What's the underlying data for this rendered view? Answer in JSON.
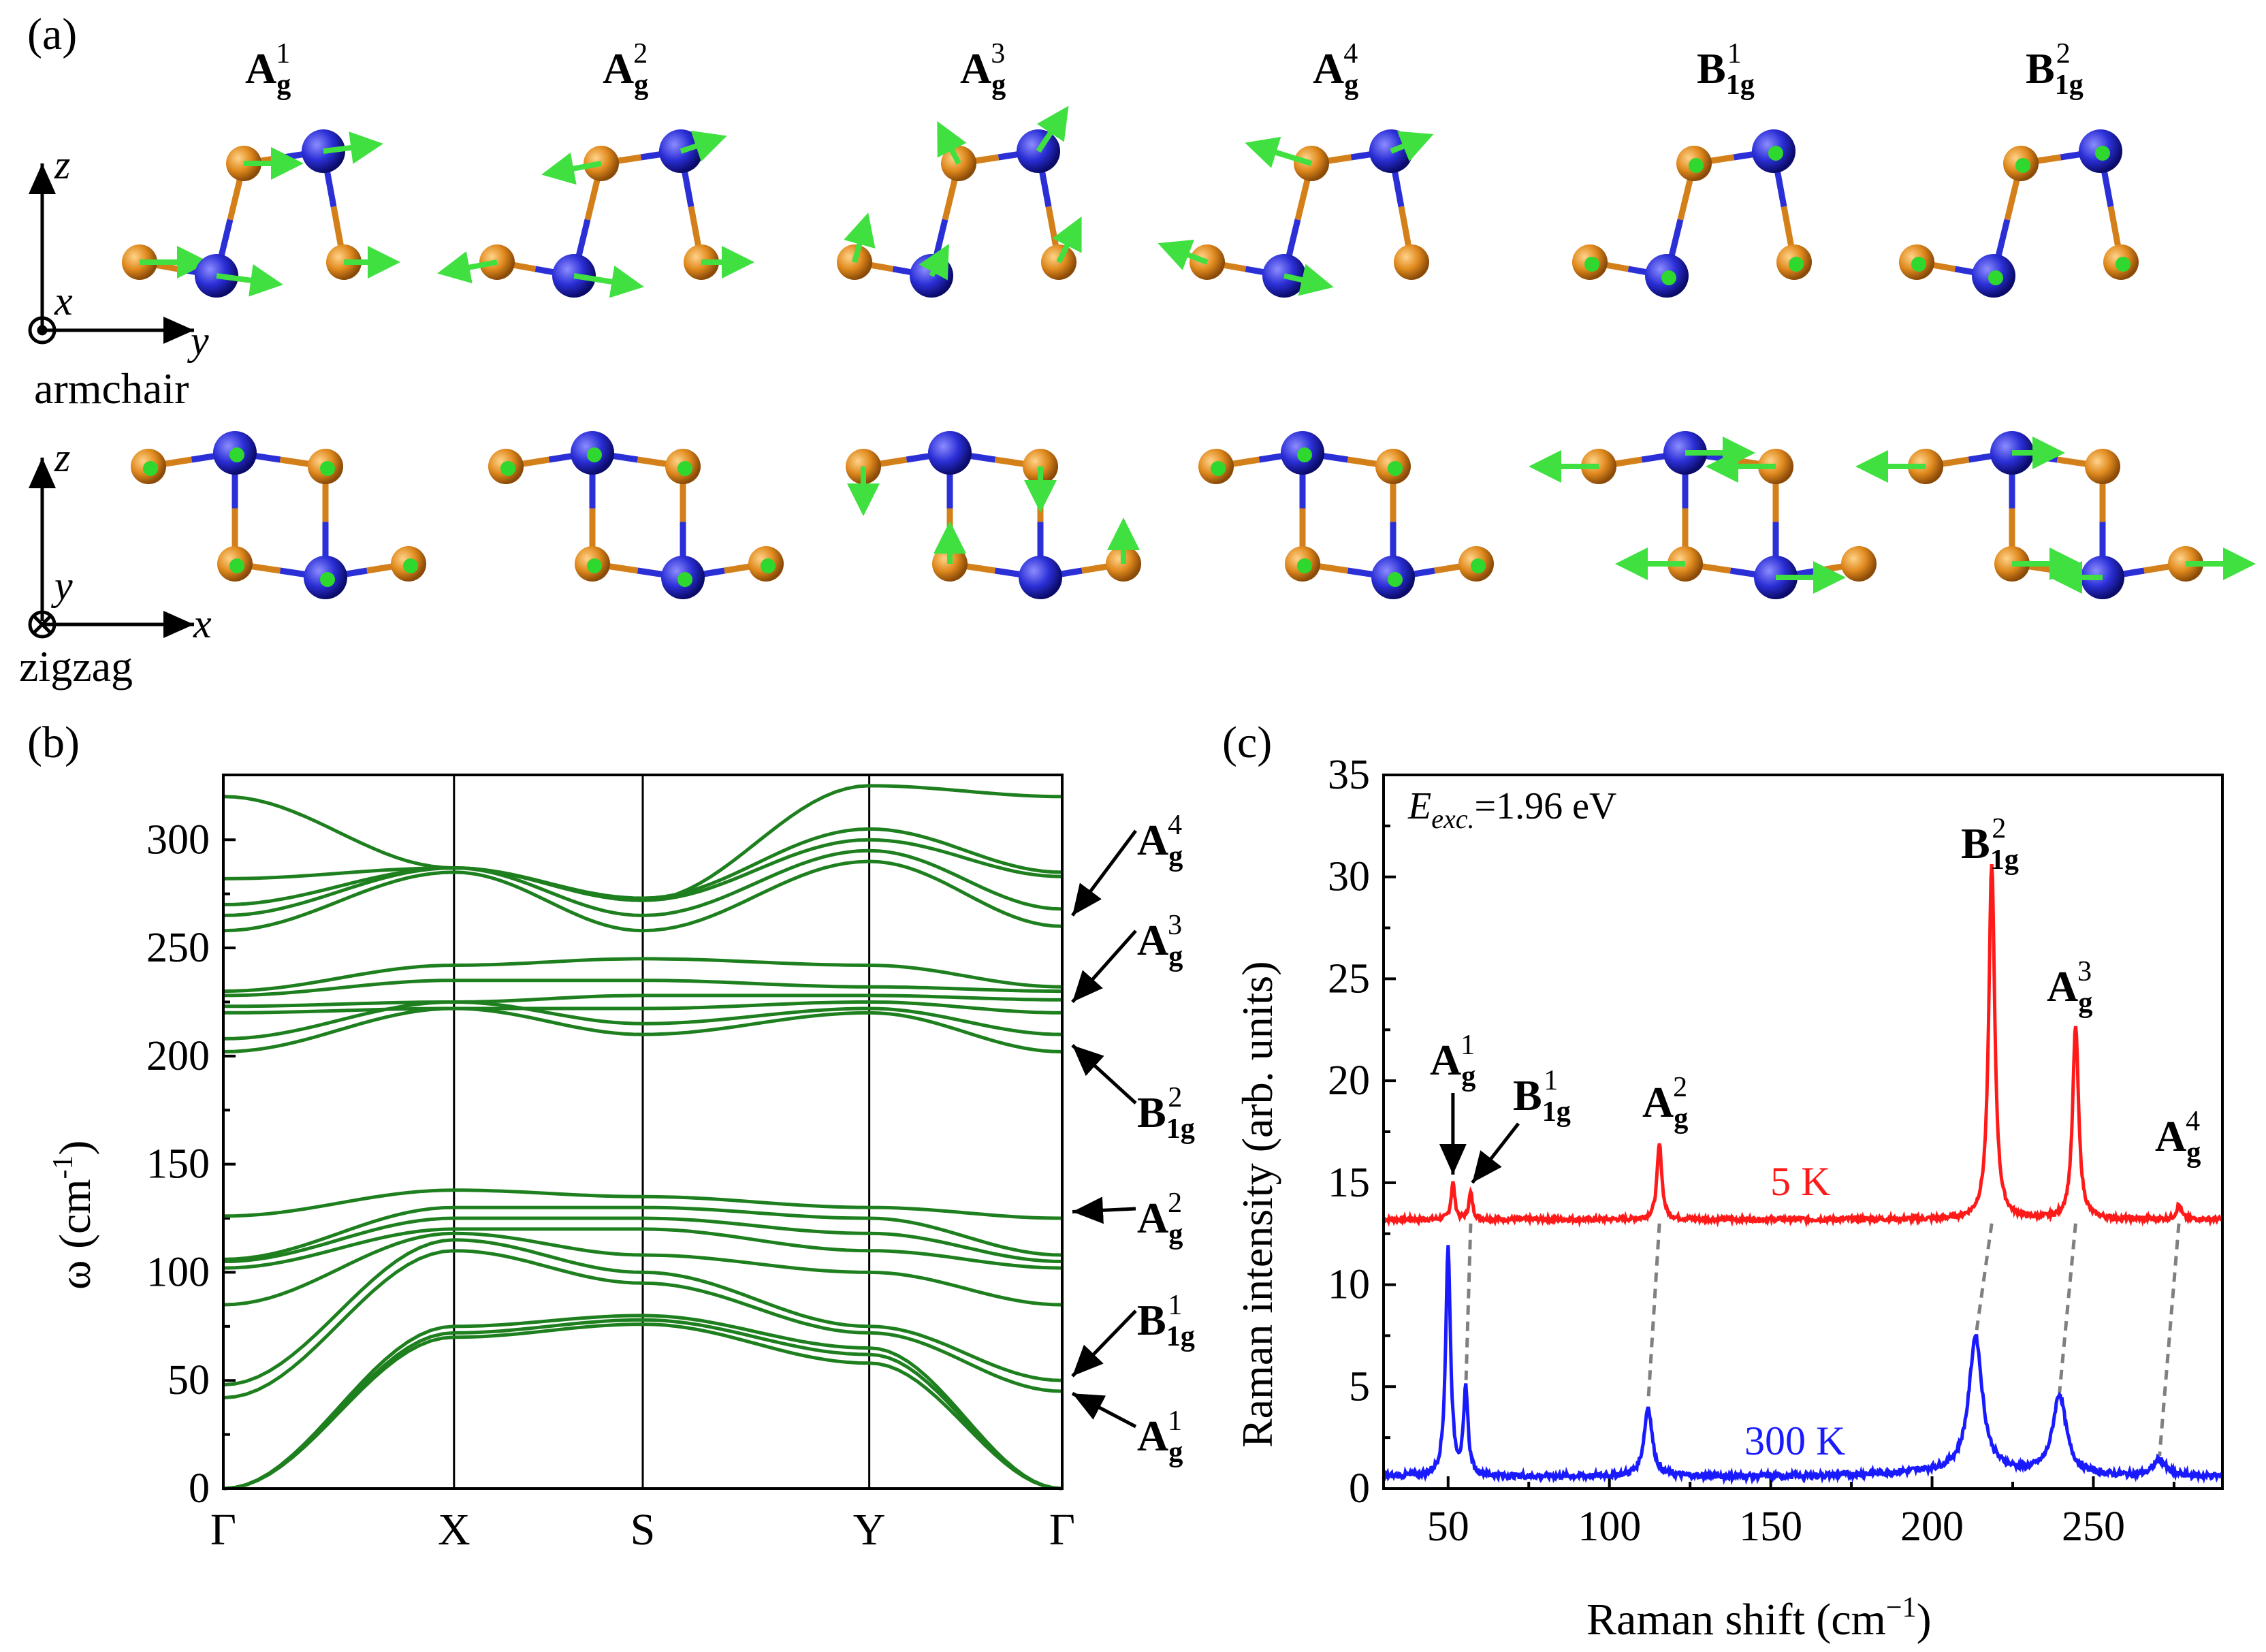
{
  "colors": {
    "orange_atom": "#E08A1E",
    "blue_atom": "#2B2FD6",
    "vector": "#3FE03F",
    "dispersion": "#1E7F1E",
    "spectrum_5K": "#FF1A1A",
    "spectrum_300K": "#1A1AFF",
    "guide_dashed": "#808080"
  },
  "panel_a": {
    "label": "(a)",
    "mode_labels": [
      {
        "base": "A",
        "sub": "g",
        "sup": "1"
      },
      {
        "base": "A",
        "sub": "g",
        "sup": "2"
      },
      {
        "base": "A",
        "sub": "g",
        "sup": "3"
      },
      {
        "base": "A",
        "sub": "g",
        "sup": "4"
      },
      {
        "base": "B",
        "sub": "1g",
        "sup": "1"
      },
      {
        "base": "B",
        "sub": "1g",
        "sup": "2"
      }
    ],
    "top_view": {
      "vertical_axis": "z",
      "horizontal_axis": "y",
      "normal_axis": "x",
      "name": "armchair"
    },
    "bottom_view": {
      "vertical_axis": "z",
      "horizontal_axis": "x",
      "normal_axis": "y",
      "name": "zigzag"
    }
  },
  "panel_b": {
    "label": "(b)",
    "ylabel_base": "ω (cm",
    "ylabel_exp": "-1",
    "ylabel_tail": ")",
    "yticks": [
      "0",
      "50",
      "100",
      "150",
      "200",
      "250",
      "300"
    ],
    "ylim": [
      0,
      330
    ],
    "kpoints": [
      "Γ",
      "X",
      "S",
      "Y",
      "Γ"
    ],
    "mode_annotations": [
      {
        "base": "A",
        "sub": "g",
        "sup": "4",
        "freq": 265
      },
      {
        "base": "A",
        "sub": "g",
        "sup": "3",
        "freq": 225
      },
      {
        "base": "B",
        "sub": "1g",
        "sup": "2",
        "freq": 205
      },
      {
        "base": "A",
        "sub": "g",
        "sup": "2",
        "freq": 128
      },
      {
        "base": "B",
        "sub": "1g",
        "sup": "1",
        "freq": 52
      },
      {
        "base": "A",
        "sub": "g",
        "sup": "1",
        "freq": 44
      }
    ]
  },
  "panel_c": {
    "label": "(c)",
    "excitation_var": "E",
    "excitation_sub": "exc.",
    "excitation_value": "=1.96 eV",
    "xlabel_base": "Raman shift (cm",
    "xlabel_exp": "−1",
    "xlabel_tail": ")",
    "ylabel": "Raman intensity (arb. units)",
    "xticks": [
      "50",
      "100",
      "150",
      "200",
      "250"
    ],
    "yticks": [
      "0",
      "5",
      "10",
      "15",
      "20",
      "25",
      "30",
      "35"
    ],
    "curve_labels": {
      "low": "5 K",
      "high": "300 K"
    }
  },
  "chart_data": [
    {
      "type": "line",
      "title": "",
      "xlabel": "",
      "ylabel": "ω (cm-1)",
      "categories": [
        "Γ",
        "X",
        "S",
        "Y",
        "Γ"
      ],
      "ylim": [
        0,
        330
      ],
      "grid": false,
      "series_values_at_kpoints": [
        [
          0,
          70,
          76,
          58,
          0
        ],
        [
          0,
          72,
          78,
          62,
          0
        ],
        [
          0,
          75,
          80,
          65,
          0
        ],
        [
          42,
          110,
          95,
          72,
          45
        ],
        [
          48,
          115,
          100,
          75,
          50
        ],
        [
          85,
          118,
          108,
          100,
          85
        ],
        [
          102,
          120,
          120,
          110,
          102
        ],
        [
          105,
          125,
          125,
          118,
          105
        ],
        [
          106,
          130,
          130,
          125,
          108
        ],
        [
          126,
          138,
          135,
          130,
          125
        ],
        [
          202,
          222,
          210,
          220,
          202
        ],
        [
          208,
          225,
          215,
          222,
          210
        ],
        [
          220,
          222,
          222,
          225,
          220
        ],
        [
          223,
          225,
          228,
          228,
          226
        ],
        [
          228,
          235,
          235,
          232,
          230
        ],
        [
          230,
          242,
          245,
          242,
          232
        ],
        [
          258,
          285,
          258,
          290,
          260
        ],
        [
          265,
          287,
          265,
          295,
          268
        ],
        [
          270,
          287,
          272,
          300,
          283
        ],
        [
          282,
          287,
          273,
          305,
          285
        ],
        [
          320,
          287,
          272,
          325,
          320
        ]
      ]
    },
    {
      "type": "line",
      "title": "",
      "xlabel": "Raman shift (cm−1)",
      "ylabel": "Raman intensity (arb. units)",
      "xlim": [
        30,
        290
      ],
      "ylim": [
        0,
        35
      ],
      "grid": false,
      "series": [
        {
          "name": "5 K",
          "baseline": 13.2,
          "peaks": [
            {
              "pos": 51.5,
              "height": 1.8,
              "width": 0.7
            },
            {
              "pos": 57.0,
              "height": 1.3,
              "width": 0.7
            },
            {
              "pos": 115.5,
              "height": 3.7,
              "width": 0.9
            },
            {
              "pos": 218.5,
              "height": 17.5,
              "width": 1.1
            },
            {
              "pos": 244.5,
              "height": 9.5,
              "width": 1.1
            },
            {
              "pos": 276.5,
              "height": 0.7,
              "width": 0.9
            }
          ]
        },
        {
          "name": "300 K",
          "baseline": 0.6,
          "peaks": [
            {
              "pos": 50.0,
              "height": 11.2,
              "width": 0.9
            },
            {
              "pos": 55.5,
              "height": 4.2,
              "width": 0.8
            },
            {
              "pos": 112.0,
              "height": 3.4,
              "width": 1.5
            },
            {
              "pos": 213.5,
              "height": 6.6,
              "width": 2.5
            },
            {
              "pos": 239.5,
              "height": 3.9,
              "width": 2.5
            },
            {
              "pos": 270.5,
              "height": 0.8,
              "width": 2.2
            }
          ]
        }
      ],
      "peak_labels": [
        {
          "base": "A",
          "sub": "g",
          "sup": "1",
          "pos": 51.5
        },
        {
          "base": "B",
          "sub": "1g",
          "sup": "1",
          "pos": 57.0
        },
        {
          "base": "A",
          "sub": "g",
          "sup": "2",
          "pos": 115.5
        },
        {
          "base": "B",
          "sub": "1g",
          "sup": "2",
          "pos": 218.5
        },
        {
          "base": "A",
          "sub": "g",
          "sup": "3",
          "pos": 244.5
        },
        {
          "base": "A",
          "sub": "g",
          "sup": "4",
          "pos": 276.5
        }
      ]
    }
  ]
}
